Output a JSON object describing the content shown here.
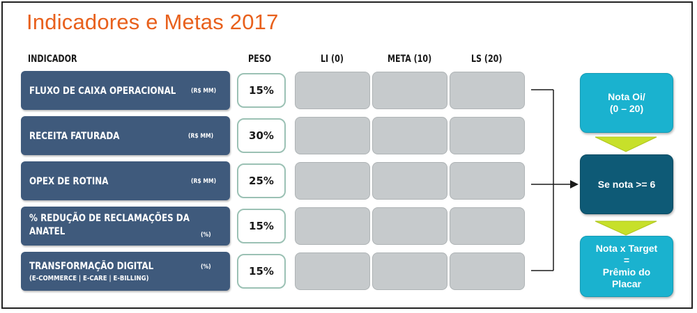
{
  "title": "Indicadores e Metas 2017",
  "headers": {
    "indicador": "INDICADOR",
    "peso": "PESO",
    "li": "LI (0)",
    "meta": "META (10)",
    "ls": "LS (20)"
  },
  "rows": [
    {
      "name": "FLUXO DE CAIXA OPERACIONAL",
      "unit": "(R$ MM)",
      "peso": "15%"
    },
    {
      "name": "RECEITA FATURADA",
      "unit": "(R$ MM)",
      "peso": "30%"
    },
    {
      "name": "OPEX DE ROTINA",
      "unit": "(R$ MM)",
      "peso": "25%"
    },
    {
      "name_line1": "% REDUÇÃO DE RECLAMAÇÕES DA",
      "name_line2": "ANATEL",
      "unit": "(%)",
      "peso": "15%"
    },
    {
      "name": "TRANSFORMAÇÃO DIGITAL",
      "sub": "(E-COMMERCE | E-CARE | E-BILLING)",
      "unit": "(%)",
      "peso": "15%"
    }
  ],
  "flow": {
    "box1": "Nota Oi/\n(0 – 20)",
    "box2": "Se nota >= 6",
    "box3_line1": "Nota x Target",
    "box3_line2": "=",
    "box3_line3": "Prêmio do",
    "box3_line4": "Placar"
  },
  "colors": {
    "title": "#e8601c",
    "indicator_fill": "#3f5a7c",
    "peso_border": "#9bc1b4",
    "cell_fill": "#c6cacc",
    "teal": "#1ab2cf",
    "dark_teal": "#0e5a76",
    "arrow_yellow": "#c7e02a"
  }
}
